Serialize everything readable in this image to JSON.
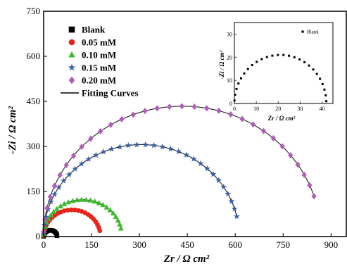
{
  "chart_data": [
    {
      "type": "scatter",
      "xlabel": "Zr / Ω cm²",
      "ylabel": "-Zi / Ω cm²",
      "xlim": [
        0,
        950
      ],
      "ylim": [
        0,
        750
      ],
      "xticks": [
        "0",
        "150",
        "300",
        "450",
        "600",
        "750",
        "900"
      ],
      "yticks": [
        "0",
        "150",
        "300",
        "450",
        "600",
        "750"
      ],
      "legend_position": "top-left",
      "fit_label": "Fitting Curves",
      "series": [
        {
          "name": "Blank",
          "marker": "square",
          "color": "#000000",
          "r0": 0,
          "r1": 42
        },
        {
          "name": "0.05 mM",
          "marker": "circle",
          "color": "#e8241c",
          "r0": 0,
          "r1": 178
        },
        {
          "name": "0.10 mM",
          "marker": "triangle",
          "color": "#3dba2c",
          "r0": 0,
          "r1": 245
        },
        {
          "name": "0.15 mM",
          "marker": "star",
          "color": "#3a5ea8",
          "r0": 0,
          "r1": 612
        },
        {
          "name": "0.20 mM",
          "marker": "diamond",
          "color": "#b05cb8",
          "r0": 0,
          "r1": 868
        }
      ]
    },
    {
      "type": "scatter",
      "xlabel": "Zr / Ω cm²",
      "ylabel": "-Zi / Ω cm²",
      "xlim": [
        0,
        45
      ],
      "ylim": [
        0,
        35
      ],
      "xticks": [
        "0",
        "10",
        "20",
        "30",
        "40"
      ],
      "yticks": [
        "0",
        "10",
        "20",
        "30"
      ],
      "legend_position": "top-right",
      "series": [
        {
          "name": "Blank",
          "marker": "square",
          "color": "#000000",
          "r0": 0,
          "r1": 42
        }
      ]
    }
  ]
}
